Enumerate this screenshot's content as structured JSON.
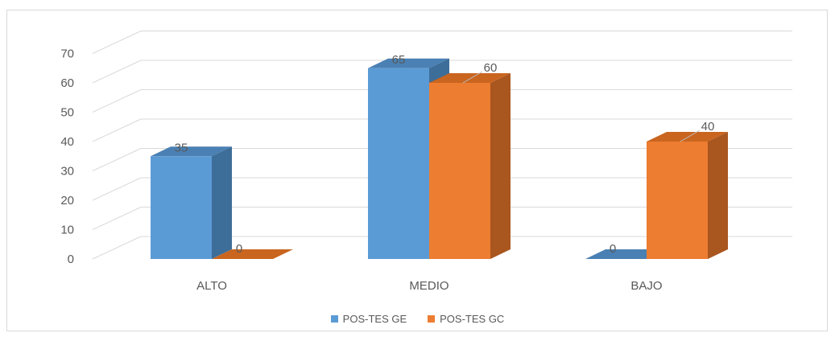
{
  "chart_data": {
    "type": "bar",
    "title": "",
    "xlabel": "",
    "ylabel": "",
    "categories": [
      "ALTO",
      "MEDIO",
      "BAJO"
    ],
    "series": [
      {
        "name": "POS-TES GE",
        "values": [
          35,
          65,
          0
        ],
        "color": "#5b9bd5",
        "side_color": "#3d6e99",
        "top_color": "#4a80b3"
      },
      {
        "name": "POS-TES GC",
        "values": [
          0,
          60,
          40
        ],
        "color": "#ed7d31",
        "side_color": "#a9561f",
        "top_color": "#c9651f"
      }
    ],
    "ylim": [
      0,
      70
    ],
    "yticks": [
      "0",
      "10",
      "20",
      "30",
      "40",
      "50",
      "60",
      "70"
    ],
    "grid": true,
    "legend_position": "bottom",
    "style": "3d-clustered-column"
  }
}
